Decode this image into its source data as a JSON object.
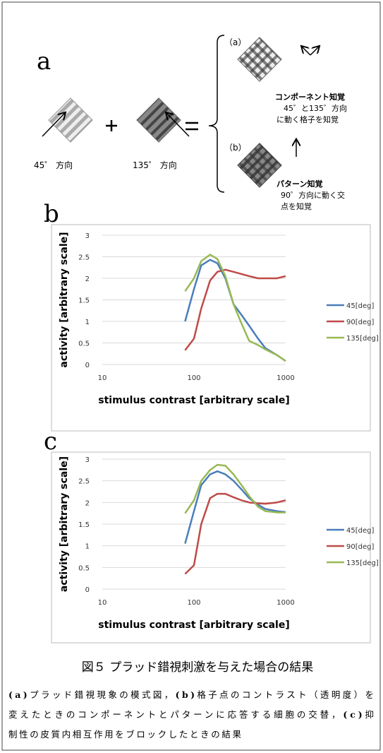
{
  "panel_a": {
    "label": "a",
    "left_caption": "45゜ 方向",
    "right_caption": "135゜ 方向",
    "component": {
      "tag": "（a）",
      "title": "コンポーネント知覚",
      "lines": [
        "45゜と135゜方向",
        "に動く格子を知覚"
      ]
    },
    "pattern": {
      "tag": "（b）",
      "title": "パターン知覚",
      "lines": [
        "90゜方向に動く交",
        "点を知覚"
      ]
    }
  },
  "chart_data": [
    {
      "type": "line",
      "panel_label": "b",
      "x_label": "stimulus contrast [arbitrary scale]",
      "y_label": "activity [arbitrary scale]",
      "x": [
        80,
        100,
        120,
        150,
        180,
        220,
        270,
        330,
        400,
        500,
        600,
        800,
        1000
      ],
      "xscale": "log",
      "xlim": [
        10,
        1000
      ],
      "xticks": [
        10,
        100,
        1000
      ],
      "ylim": [
        0,
        3
      ],
      "yticks": [
        0,
        0.5,
        1,
        1.5,
        2,
        2.5,
        3
      ],
      "grid": true,
      "legend": "right",
      "series": [
        {
          "name": "45[deg]",
          "color": "#4a7ebb",
          "values": [
            1.0,
            1.75,
            2.3,
            2.43,
            2.35,
            2.0,
            1.4,
            1.15,
            0.9,
            0.6,
            0.38,
            0.22,
            0.08
          ]
        },
        {
          "name": "90[deg]",
          "color": "#be4b48",
          "values": [
            0.33,
            0.6,
            1.3,
            1.95,
            2.15,
            2.2,
            2.15,
            2.1,
            2.05,
            2.0,
            2.0,
            2.0,
            2.05
          ]
        },
        {
          "name": "135[deg]",
          "color": "#98b954",
          "values": [
            1.7,
            2.0,
            2.4,
            2.55,
            2.45,
            2.05,
            1.4,
            0.95,
            0.55,
            0.45,
            0.35,
            0.22,
            0.08
          ]
        }
      ]
    },
    {
      "type": "line",
      "panel_label": "c",
      "x_label": "stimulus contrast [arbitrary scale]",
      "y_label": "activity [arbitrary scale]",
      "x": [
        80,
        100,
        120,
        150,
        180,
        220,
        270,
        330,
        400,
        500,
        600,
        800,
        1000
      ],
      "xscale": "log",
      "xlim": [
        10,
        1000
      ],
      "xticks": [
        10,
        100,
        1000
      ],
      "ylim": [
        0,
        3
      ],
      "yticks": [
        0,
        0.5,
        1,
        1.5,
        2,
        2.5,
        3
      ],
      "grid": true,
      "legend": "right",
      "series": [
        {
          "name": "45[deg]",
          "color": "#4a7ebb",
          "values": [
            1.05,
            1.8,
            2.4,
            2.65,
            2.72,
            2.65,
            2.5,
            2.3,
            2.1,
            1.95,
            1.85,
            1.8,
            1.78
          ]
        },
        {
          "name": "90[deg]",
          "color": "#be4b48",
          "values": [
            0.35,
            0.55,
            1.5,
            2.1,
            2.2,
            2.2,
            2.12,
            2.05,
            2.0,
            1.98,
            1.97,
            2.0,
            2.05
          ]
        },
        {
          "name": "135[deg]",
          "color": "#98b954",
          "values": [
            1.75,
            2.05,
            2.5,
            2.75,
            2.87,
            2.85,
            2.65,
            2.4,
            2.15,
            1.9,
            1.8,
            1.77,
            1.77
          ]
        }
      ]
    }
  ],
  "caption": {
    "title": "図５ プラッド錯視刺激を与えた場合の結果",
    "lines": [
      [
        {
          "text": "(a)",
          "bold": true
        },
        {
          "text": "プラッド錯視現象の模式図，"
        },
        {
          "text": "(b)",
          "bold": true
        },
        {
          "text": "格子点のコントラスト（透明度）を"
        }
      ],
      [
        {
          "text": "変えたときのコンポーネントとパターンに応答する細胞の交替，"
        },
        {
          "text": "(c)",
          "bold": true
        },
        {
          "text": "抑"
        }
      ],
      [
        {
          "text": "制性の皮質内相互作用をブロックしたときの結果"
        }
      ]
    ]
  }
}
